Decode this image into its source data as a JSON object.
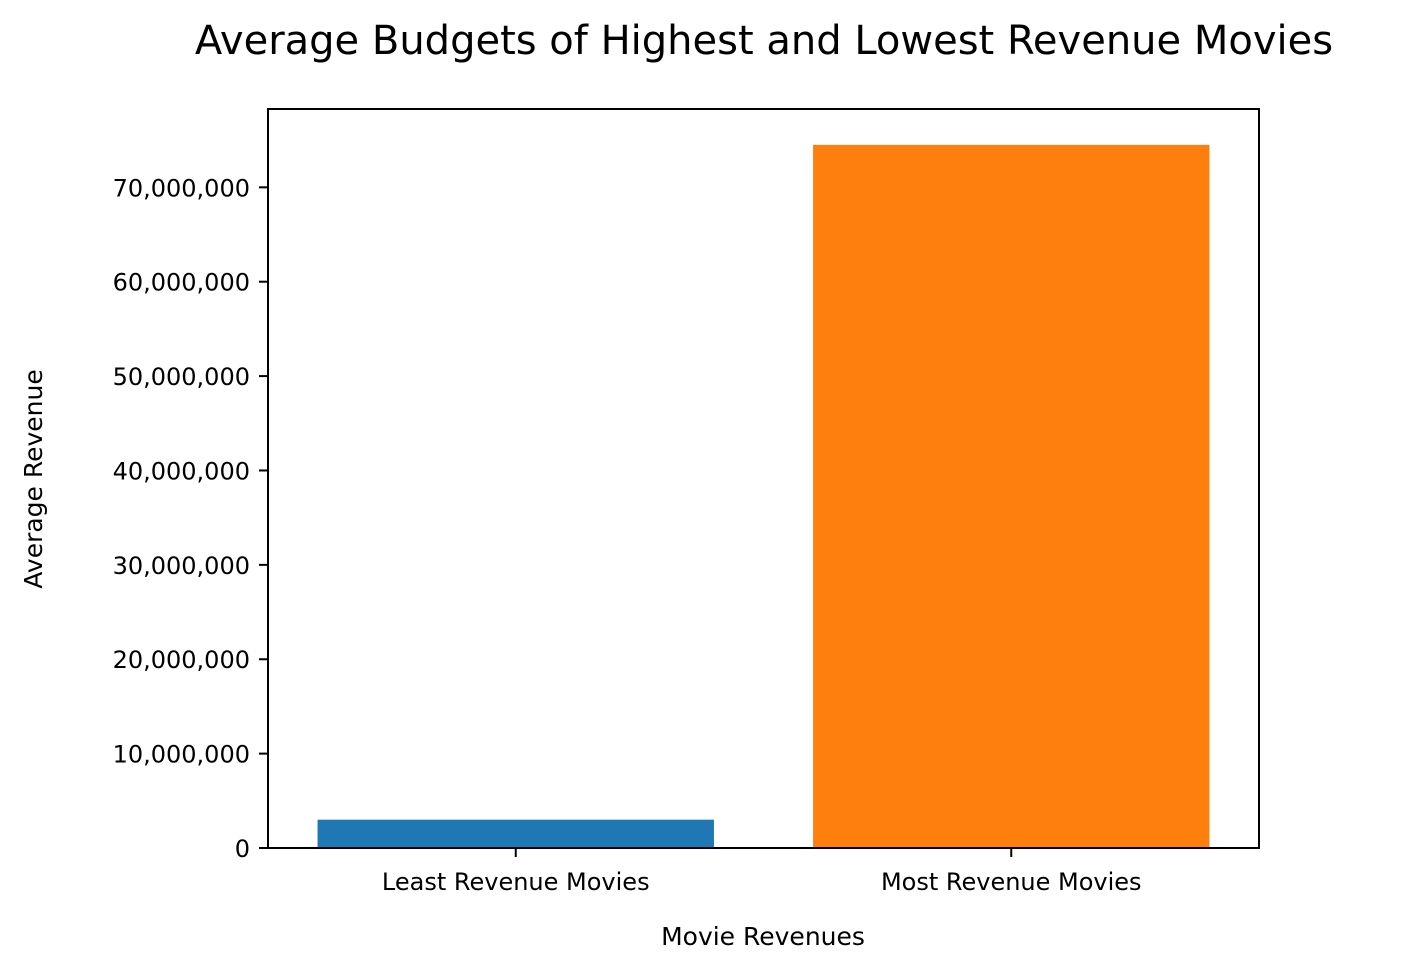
{
  "chart_data": {
    "type": "bar",
    "title": "Average Budgets of Highest and Lowest Revenue Movies",
    "xlabel": "Movie Revenues",
    "ylabel": "Average Revenue",
    "categories": [
      "Least Revenue Movies",
      "Most Revenue Movies"
    ],
    "values": [
      3000000,
      74500000
    ],
    "colors": [
      "#1f77b4",
      "#ff7f0e"
    ],
    "ylim": [
      0,
      78300000
    ],
    "yticks": [
      0,
      10000000,
      20000000,
      30000000,
      40000000,
      50000000,
      60000000,
      70000000
    ],
    "ytick_labels": [
      "0",
      "10,000,000",
      "20,000,000",
      "30,000,000",
      "40,000,000",
      "50,000,000",
      "60,000,000",
      "70,000,000"
    ],
    "grid": false,
    "legend": "none"
  }
}
